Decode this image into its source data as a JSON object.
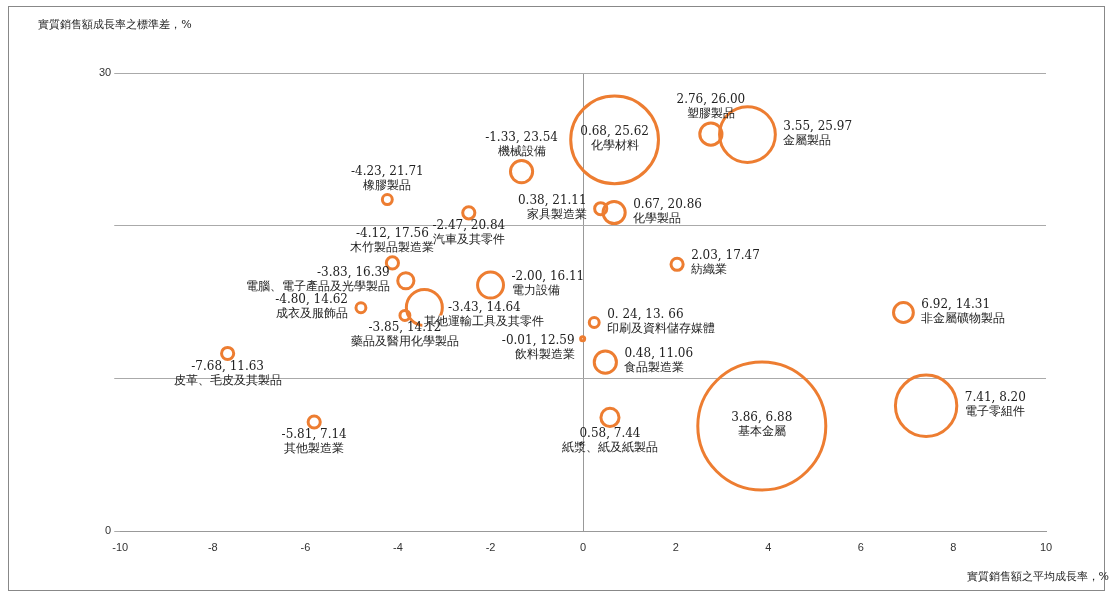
{
  "chart_data": {
    "type": "bubble",
    "xlabel": "實質銷售額之平均成長率，%",
    "ylabel": "實質銷售額成長率之標準差，%",
    "xlim": [
      -10,
      10
    ],
    "xticks": [
      -10,
      -8,
      -6,
      -4,
      -2,
      0,
      2,
      4,
      6,
      8,
      10
    ],
    "ylim": [
      0,
      30
    ],
    "yticks": [
      0,
      {
        "value": 10,
        "label": null
      },
      {
        "value": 20,
        "label": null
      },
      30
    ],
    "grid": "y",
    "legend": false,
    "series": [
      {
        "name": "橡膠製品",
        "color": "#ed7d31",
        "x": [
          -4.23
        ],
        "values": [
          21.71
        ],
        "sizes": [
          0.006
        ],
        "value_labels": [
          "-4.23, 21.71"
        ]
      },
      {
        "name": "機械設備",
        "color": "#ed7d31",
        "x": [
          -1.33
        ],
        "values": [
          23.54
        ],
        "sizes": [
          0.03
        ],
        "value_labels": [
          "-1.33, 23.54"
        ]
      },
      {
        "name": "化學材料",
        "color": "#ed7d31",
        "x": [
          0.68
        ],
        "values": [
          25.62
        ],
        "sizes": [
          0.47
        ],
        "value_labels": [
          "0.68, 25.62"
        ]
      },
      {
        "name": "塑膠製品",
        "color": "#ed7d31",
        "x": [
          2.76
        ],
        "values": [
          26.0
        ],
        "sizes": [
          0.03
        ],
        "value_labels": [
          "2.76, 26.00"
        ]
      },
      {
        "name": "金屬製品",
        "color": "#ed7d31",
        "x": [
          3.55
        ],
        "values": [
          25.97
        ],
        "sizes": [
          0.19
        ],
        "value_labels": [
          "3.55, 25.97"
        ]
      },
      {
        "name": "汽車及其零件",
        "color": "#ed7d31",
        "x": [
          -2.47
        ],
        "values": [
          20.84
        ],
        "sizes": [
          0.009
        ],
        "value_labels": [
          "-2.47, 20.84"
        ]
      },
      {
        "name": "家具製造業",
        "color": "#ed7d31",
        "x": [
          0.38
        ],
        "values": [
          21.11
        ],
        "sizes": [
          0.009
        ],
        "value_labels": [
          "0.38, 21.11"
        ]
      },
      {
        "name": "化學製品",
        "color": "#ed7d31",
        "x": [
          0.67
        ],
        "values": [
          20.86
        ],
        "sizes": [
          0.03
        ],
        "value_labels": [
          "0.67, 20.86"
        ]
      },
      {
        "name": "木竹製品製造業",
        "color": "#ed7d31",
        "x": [
          -4.12
        ],
        "values": [
          17.56
        ],
        "sizes": [
          0.009
        ],
        "value_labels": [
          "-4.12, 17.56"
        ]
      },
      {
        "name": "紡織業",
        "color": "#ed7d31",
        "x": [
          2.03
        ],
        "values": [
          17.47
        ],
        "sizes": [
          0.009
        ],
        "value_labels": [
          "2.03, 17.47"
        ]
      },
      {
        "name": "電腦、電子產品及光學製品",
        "color": "#ed7d31",
        "x": [
          -3.83
        ],
        "values": [
          16.39
        ],
        "sizes": [
          0.016
        ],
        "value_labels": [
          "-3.83, 16.39"
        ]
      },
      {
        "name": "電力設備",
        "color": "#ed7d31",
        "x": [
          -2.0
        ],
        "values": [
          16.11
        ],
        "sizes": [
          0.041
        ],
        "value_labels": [
          "-2.00, 16.11"
        ]
      },
      {
        "name": "成衣及服飾品",
        "color": "#ed7d31",
        "x": [
          -4.8
        ],
        "values": [
          14.62
        ],
        "sizes": [
          0.006
        ],
        "value_labels": [
          "-4.80, 14.62"
        ]
      },
      {
        "name": "其他運輸工具及其零件",
        "color": "#ed7d31",
        "x": [
          -3.43
        ],
        "values": [
          14.64
        ],
        "sizes": [
          0.079
        ],
        "value_labels": [
          "-3.43, 14.64"
        ]
      },
      {
        "name": "非金屬礦物製品",
        "color": "#ed7d31",
        "x": [
          6.92
        ],
        "values": [
          14.31
        ],
        "sizes": [
          0.024
        ],
        "value_labels": [
          "6.92, 14.31"
        ]
      },
      {
        "name": "印刷及資料儲存媒體",
        "color": "#ed7d31",
        "x": [
          0.24
        ],
        "values": [
          13.66
        ],
        "sizes": [
          0.006
        ],
        "value_labels": [
          "0. 24, 13. 66"
        ]
      },
      {
        "name": "藥品及醫用化學製品",
        "color": "#ed7d31",
        "x": [
          -3.85
        ],
        "values": [
          14.12
        ],
        "sizes": [
          0.006
        ],
        "value_labels": [
          "-3.85, 14.12"
        ]
      },
      {
        "name": "飲料製造業",
        "color": "#ed7d31",
        "x": [
          -0.01
        ],
        "values": [
          12.59
        ],
        "sizes": [
          0.001
        ],
        "value_labels": [
          "-0.01, 12.59"
        ]
      },
      {
        "name": "食品製造業",
        "color": "#ed7d31",
        "x": [
          0.48
        ],
        "values": [
          11.06
        ],
        "sizes": [
          0.03
        ],
        "value_labels": [
          "0.48, 11.06"
        ]
      },
      {
        "name": "皮革、毛皮及其製品",
        "color": "#ed7d31",
        "x": [
          -7.68
        ],
        "values": [
          11.63
        ],
        "sizes": [
          0.009
        ],
        "value_labels": [
          "-7.68, 11.63"
        ]
      },
      {
        "name": "電子零組件",
        "color": "#ed7d31",
        "x": [
          7.41
        ],
        "values": [
          8.2
        ],
        "sizes": [
          0.23
        ],
        "value_labels": [
          "7.41, 8.20"
        ]
      },
      {
        "name": "基本金屬",
        "color": "#ed7d31",
        "x": [
          3.86
        ],
        "values": [
          6.88
        ],
        "sizes": [
          1
        ],
        "value_labels": [
          "3.86, 6.88"
        ]
      },
      {
        "name": "紙漿、紙及紙製品",
        "color": "#ed7d31",
        "x": [
          0.58
        ],
        "values": [
          7.44
        ],
        "sizes": [
          0.02
        ],
        "value_labels": [
          "0.58, 7.44"
        ]
      },
      {
        "name": "其他製造業",
        "color": "#ed7d31",
        "x": [
          -5.81
        ],
        "values": [
          7.14
        ],
        "sizes": [
          0.009
        ],
        "value_labels": [
          "-5.81, 7.14"
        ]
      }
    ]
  }
}
